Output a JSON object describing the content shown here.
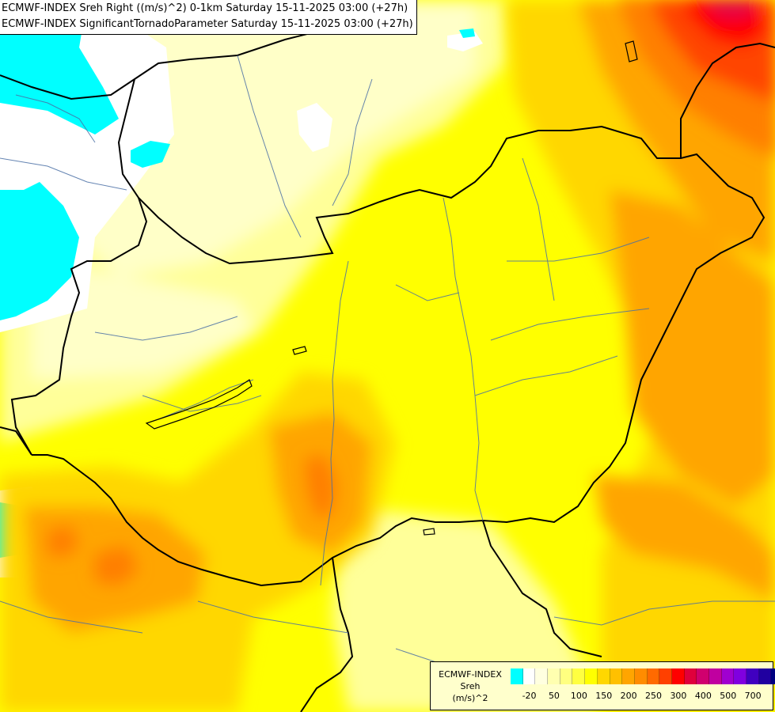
{
  "title": {
    "line1": "ECMWF-INDEX Sreh Right ((m/s)^2) 0-1km Saturday 15-11-2025 03:00 (+27h)",
    "line2": "ECMWF-INDEX SignificantTornadoParameter Saturday 15-11-2025 03:00 (+27h)"
  },
  "legend": {
    "model": "ECMWF-INDEX",
    "parameter": "Sreh",
    "unit": "(m/s)^2",
    "colors": [
      "#00ffff",
      "#ffffff",
      "#ffffe0",
      "#ffffb0",
      "#ffff80",
      "#ffff40",
      "#ffff00",
      "#ffd700",
      "#ffc000",
      "#ffa500",
      "#ff8c00",
      "#ff6a00",
      "#ff4000",
      "#ff0000",
      "#e0003c",
      "#d0006e",
      "#c000a0",
      "#a000d0",
      "#8000e0",
      "#4000c0",
      "#2000a0",
      "#000080"
    ],
    "ticks": [
      {
        "label": "-20",
        "slot": 1
      },
      {
        "label": "50",
        "slot": 3
      },
      {
        "label": "100",
        "slot": 5
      },
      {
        "label": "150",
        "slot": 7
      },
      {
        "label": "200",
        "slot": 9
      },
      {
        "label": "250",
        "slot": 11
      },
      {
        "label": "300",
        "slot": 13
      },
      {
        "label": "400",
        "slot": 15
      },
      {
        "label": "500",
        "slot": 17
      },
      {
        "label": "700",
        "slot": 19
      }
    ]
  },
  "field_colors": {
    "cyan": "#00ffff",
    "white": "#ffffff",
    "pale": "#ffffc8",
    "light_yellow": "#ffff99",
    "yellow": "#ffff00",
    "gold": "#ffd700",
    "orange": "#ffa500",
    "dark_orange": "#ff7f00",
    "red_orange": "#ff4500",
    "red": "#ff0000",
    "crimson": "#e0004c"
  }
}
